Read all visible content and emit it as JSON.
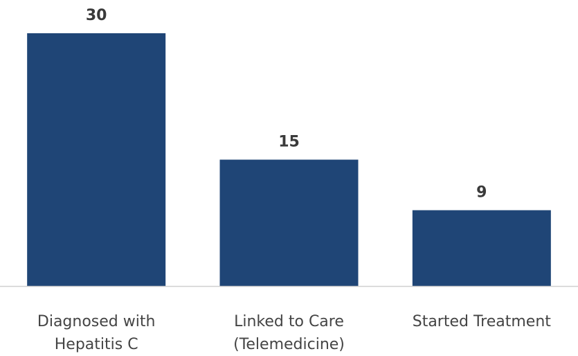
{
  "chart_data": {
    "type": "bar",
    "categories": [
      [
        "Diagnosed with",
        "Hepatitis C"
      ],
      [
        "Linked to Care",
        "(Telemedicine)"
      ],
      [
        "Started Treatment"
      ]
    ],
    "values": [
      30,
      15,
      9
    ],
    "data_labels": [
      "30",
      "15",
      "9"
    ],
    "ylim": [
      0,
      30
    ],
    "grid": false,
    "legend": "none",
    "bar_color": "#1f4576",
    "axis_color": "#d0d0d0"
  }
}
